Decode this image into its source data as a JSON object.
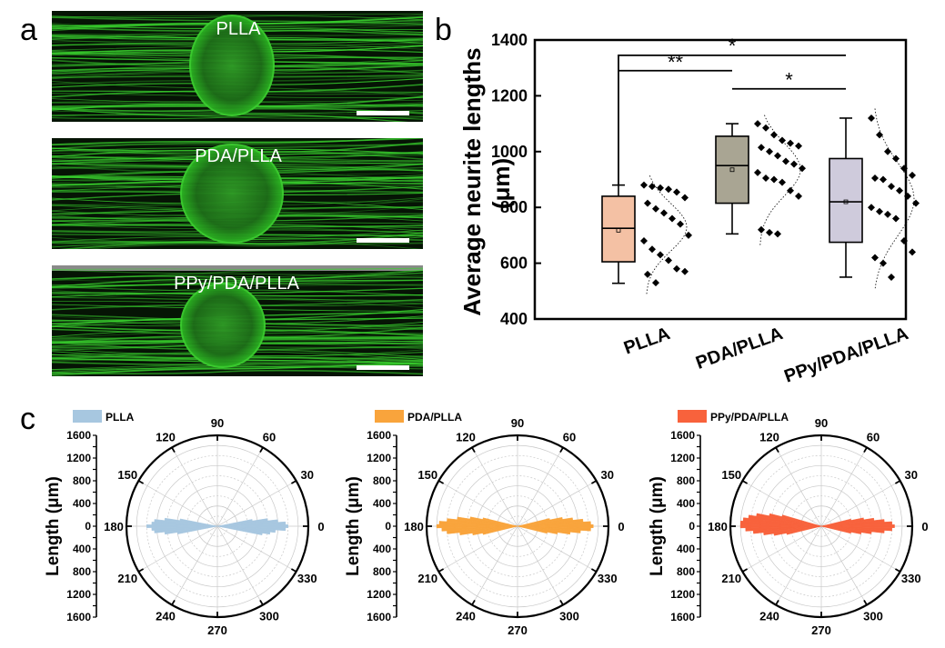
{
  "panel_labels": {
    "a": "a",
    "b": "b",
    "c": "c"
  },
  "micrographs": [
    {
      "label": "PLLA"
    },
    {
      "label": "PDA/PLLA"
    },
    {
      "label": "PPy/PDA/PLLA"
    }
  ],
  "colors": {
    "micrograph_bg": "#061405",
    "neurite_green": "#39d22e",
    "box_plla": "#f4c1a4",
    "box_pda": "#a9a593",
    "box_ppy": "#cfcbdc",
    "polar_plla": "#a7c7e0",
    "polar_pda": "#f9a43c",
    "polar_ppy": "#f8623c"
  },
  "chart_data": [
    {
      "type": "box",
      "ylabel_line1": "Average neurite lengths",
      "ylabel_line2": "(μm)",
      "ylim": [
        400,
        1400
      ],
      "yticks": [
        "400",
        "600",
        "800",
        "1000",
        "1200",
        "1400"
      ],
      "categories": [
        "PLLA",
        "PDA/PLLA",
        "PPy/PDA/PLLA"
      ],
      "boxes": [
        {
          "name": "PLLA",
          "whisker_low": 528,
          "q1": 605,
          "median": 725,
          "q3": 840,
          "whisker_high": 880,
          "mean": 718
        },
        {
          "name": "PDA/PLLA",
          "whisker_low": 705,
          "q1": 815,
          "median": 950,
          "q3": 1055,
          "whisker_high": 1100,
          "mean": 935
        },
        {
          "name": "PPy/PDA/PLLA",
          "whisker_low": 550,
          "q1": 675,
          "median": 820,
          "q3": 975,
          "whisker_high": 1120,
          "mean": 820
        }
      ],
      "points": [
        [
          880,
          875,
          870,
          865,
          855,
          835,
          815,
          795,
          780,
          760,
          740,
          700,
          680,
          650,
          630,
          610,
          580,
          570,
          560,
          530
        ],
        [
          1100,
          1085,
          1060,
          1040,
          1030,
          1020,
          1015,
          1000,
          985,
          965,
          955,
          940,
          925,
          905,
          900,
          890,
          860,
          840,
          720,
          710,
          705
        ],
        [
          1120,
          1060,
          1000,
          975,
          940,
          915,
          905,
          900,
          875,
          860,
          840,
          815,
          800,
          785,
          775,
          760,
          680,
          640,
          620,
          600,
          550
        ]
      ],
      "significance": [
        {
          "from": "PLLA",
          "to": "PDA/PLLA",
          "label": "**"
        },
        {
          "from": "PLLA",
          "to": "PPy/PDA/PLLA",
          "label": "*"
        },
        {
          "from": "PDA/PLLA",
          "to": "PPy/PDA/PLLA",
          "label": "*"
        }
      ]
    },
    {
      "type": "polar-bar",
      "series_name": "PLLA",
      "color": "#a7c7e0",
      "ylabel": "Length  (μm)",
      "radial_ticks": [
        "0",
        "400",
        "800",
        "1200",
        "1600"
      ],
      "radial_max": 1800,
      "angle_labels": [
        "0",
        "30",
        "60",
        "90",
        "120",
        "150",
        "180",
        "210",
        "240",
        "270",
        "300",
        "330"
      ],
      "bins_deg": [
        -10,
        -7.5,
        -5,
        -2.5,
        0,
        2.5,
        5,
        7.5,
        10,
        170,
        172.5,
        175,
        177.5,
        180,
        182.5,
        185,
        187.5,
        190
      ],
      "lengths": [
        900,
        1050,
        1150,
        1350,
        1400,
        1350,
        1200,
        1000,
        700,
        750,
        1050,
        1250,
        1300,
        1400,
        1300,
        1250,
        1050,
        800
      ]
    },
    {
      "type": "polar-bar",
      "series_name": "PDA/PLLA",
      "color": "#f9a43c",
      "ylabel": "Length  (μm)",
      "radial_ticks": [
        "0",
        "400",
        "800",
        "1200",
        "1600"
      ],
      "radial_max": 1800,
      "angle_labels": [
        "0",
        "30",
        "60",
        "90",
        "120",
        "150",
        "180",
        "210",
        "240",
        "270",
        "300",
        "330"
      ],
      "bins_deg": [
        -12.5,
        -10,
        -7.5,
        -5,
        -2.5,
        0,
        2.5,
        5,
        7.5,
        10,
        12.5,
        167.5,
        170,
        172.5,
        175,
        177.5,
        180,
        182.5,
        185,
        187.5,
        190,
        192.5
      ],
      "lengths": [
        600,
        800,
        1050,
        1250,
        1450,
        1500,
        1450,
        1300,
        1100,
        900,
        650,
        700,
        950,
        1200,
        1400,
        1550,
        1600,
        1500,
        1400,
        1150,
        900,
        700
      ]
    },
    {
      "type": "polar-bar",
      "series_name": "PPy/PDA/PLLA",
      "color": "#f8623c",
      "ylabel": "Length  (μm)",
      "radial_ticks": [
        "0",
        "400",
        "800",
        "1200",
        "1600"
      ],
      "radial_max": 1800,
      "angle_labels": [
        "0",
        "30",
        "60",
        "90",
        "120",
        "150",
        "180",
        "210",
        "240",
        "270",
        "300",
        "330"
      ],
      "bins_deg": [
        -12.5,
        -10,
        -7.5,
        -5,
        -2.5,
        0,
        2.5,
        5,
        7.5,
        10,
        12.5,
        165,
        167.5,
        170,
        172.5,
        175,
        177.5,
        180,
        182.5,
        185,
        187.5,
        190,
        192.5
      ],
      "lengths": [
        600,
        800,
        1000,
        1250,
        1400,
        1450,
        1400,
        1250,
        1050,
        850,
        600,
        800,
        1050,
        1300,
        1450,
        1550,
        1600,
        1600,
        1500,
        1350,
        1150,
        950,
        700
      ]
    }
  ]
}
